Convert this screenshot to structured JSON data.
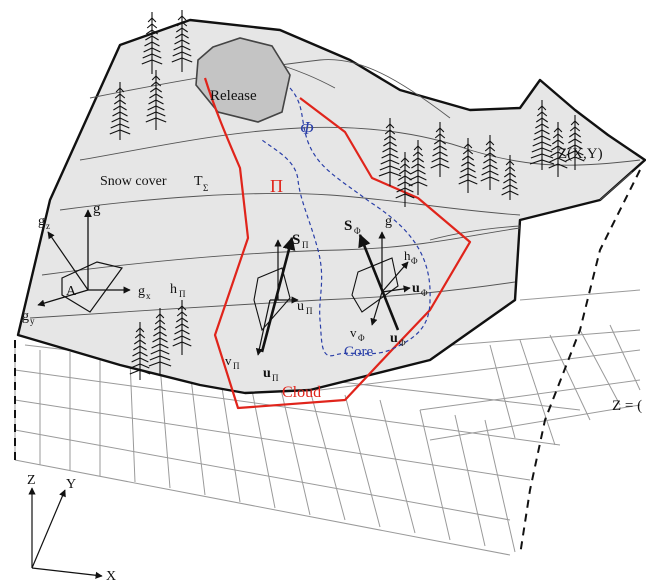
{
  "labels": {
    "release": "Release",
    "phi": "Φ",
    "pi": "Π",
    "snow_cover": "Snow cover",
    "t": "T",
    "sigma": "Σ",
    "surface_fn": "Z(X,Y)",
    "z_eq": "Z = (",
    "g": "g",
    "gz": "g",
    "gz_sub": "z",
    "gx": "g",
    "gx_sub": "x",
    "gy": "g",
    "gy_sub": "y",
    "area": "A",
    "h_pi": "h",
    "h_pi_sub": "Π",
    "s_pi": "S",
    "s_pi_sub": "Π",
    "u_pi": "u",
    "u_pi_sub": "Π",
    "v_pi": "v",
    "v_pi_sub": "Π",
    "bold_u_pi": "u",
    "bold_u_pi_sub": "Π",
    "cloud": "Cloud",
    "core": "Core",
    "s_phi": "S",
    "s_phi_sub": "Φ",
    "g_phi": "g",
    "h_phi": "h",
    "h_phi_sub": "Φ",
    "u_phi": "u",
    "u_phi_sub": "Φ",
    "v_phi": "v",
    "v_phi_sub": "Φ",
    "bold_u_phi": "u",
    "bold_u_phi_sub": "Φ",
    "axis_z": "Z",
    "axis_y": "Y",
    "axis_x": "X"
  },
  "colors": {
    "terrain_fill": "#e6e6e6",
    "release_fill": "#c4c4c4",
    "cloud_outline": "#e0241b",
    "core_outline": "#2a3fa8",
    "ink": "#111111"
  }
}
